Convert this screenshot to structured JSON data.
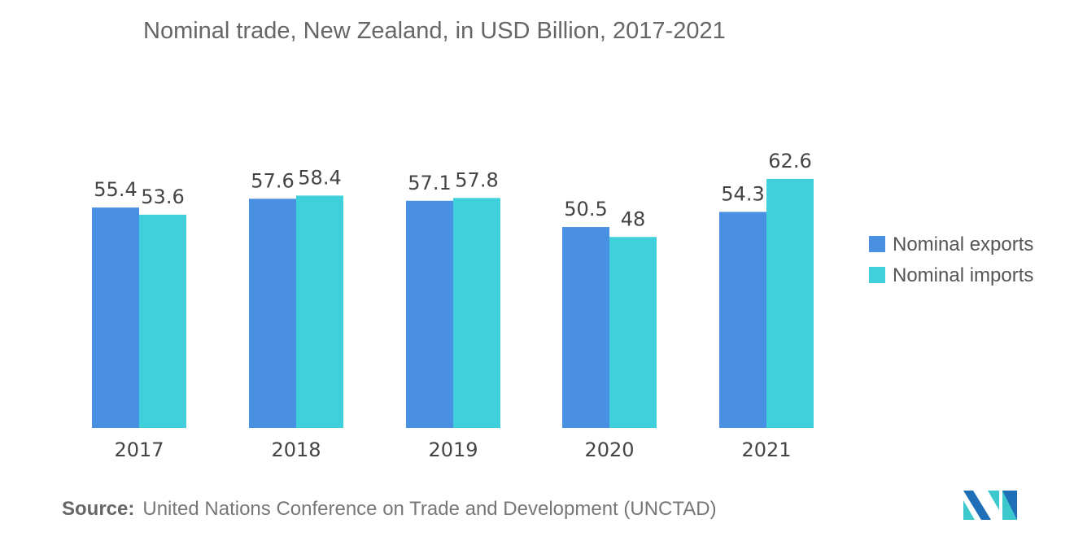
{
  "chart_data": {
    "type": "bar",
    "title": "Nominal trade, New Zealand, in USD Billion, 2017-2021",
    "categories": [
      "2017",
      "2018",
      "2019",
      "2020",
      "2021"
    ],
    "series": [
      {
        "name": "Nominal exports",
        "color": "#4A90E2",
        "values": [
          55.4,
          57.6,
          57.1,
          50.5,
          54.3
        ],
        "labels": [
          "55.4",
          "57.6",
          "57.1",
          "50.5",
          "54.3"
        ]
      },
      {
        "name": "Nominal imports",
        "color": "#40D0DB",
        "values": [
          53.6,
          58.4,
          57.8,
          48,
          62.6
        ],
        "labels": [
          "53.6",
          "58.4",
          "57.8",
          "48",
          "62.6"
        ]
      }
    ],
    "ylim": [
      0,
      80
    ],
    "grid": false,
    "legend": "right"
  },
  "source": {
    "label": "Source:",
    "text": "United Nations Conference on Trade and Development (UNCTAD)"
  },
  "logo": {
    "colors": [
      "#1E6FB8",
      "#3CC8CC"
    ]
  }
}
